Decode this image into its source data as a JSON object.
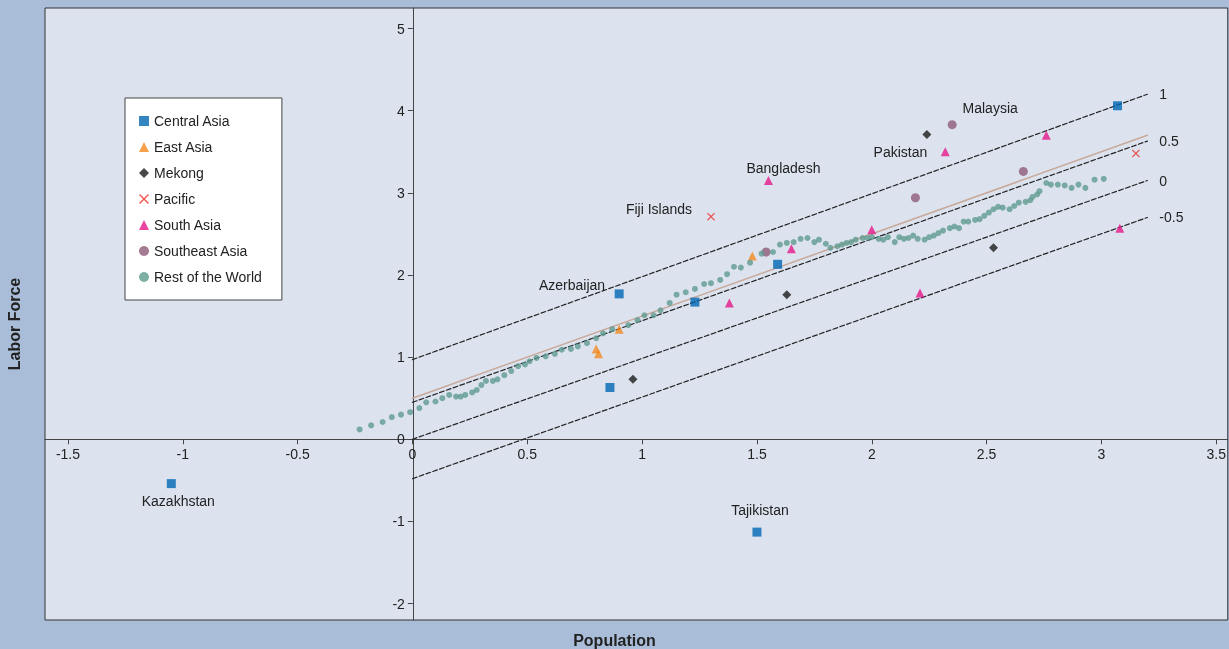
{
  "chart_data": {
    "type": "scatter",
    "xlabel": "Population",
    "ylabel": "Labor Force",
    "xlim": [
      -1.6,
      3.55
    ],
    "ylim": [
      -2.2,
      5.25
    ],
    "xticks": [
      -1.5,
      -1,
      -0.5,
      0,
      0.5,
      1,
      1.5,
      2,
      2.5,
      3,
      3.5
    ],
    "yticks": [
      -2,
      -1,
      0,
      1,
      2,
      3,
      4,
      5
    ],
    "legend": "top left",
    "series": [
      {
        "name": "Central Asia",
        "marker": "square",
        "color": "#0066b3",
        "x": [
          0.9,
          0.86,
          1.23,
          1.59,
          3.07,
          -1.05,
          1.5
        ],
        "values": [
          1.77,
          0.63,
          1.67,
          2.13,
          4.06,
          -0.54,
          -1.13
        ]
      },
      {
        "name": "East Asia",
        "marker": "triangle",
        "color": "#f28a1e",
        "x": [
          0.8,
          0.81,
          0.9,
          1.48
        ],
        "values": [
          1.1,
          1.04,
          1.34,
          2.23
        ]
      },
      {
        "name": "Mekong",
        "marker": "diamond",
        "color": "#1a1a1a",
        "x": [
          2.24,
          0.96,
          1.63,
          2.53
        ],
        "values": [
          3.71,
          0.73,
          1.76,
          2.33
        ]
      },
      {
        "name": "Pacific",
        "marker": "cross",
        "color": "#ee2a24",
        "x": [
          1.3,
          3.15
        ],
        "values": [
          2.71,
          3.48
        ]
      },
      {
        "name": "South Asia",
        "marker": "triangle",
        "color": "#e6168a",
        "x": [
          1.55,
          2.32,
          2.76,
          2.0,
          1.65,
          1.38,
          2.21,
          3.08
        ],
        "values": [
          3.15,
          3.5,
          3.7,
          2.55,
          2.32,
          1.66,
          1.78,
          2.57
        ]
      },
      {
        "name": "Southeast Asia",
        "marker": "circle",
        "color": "#8e5a78",
        "x": [
          2.35,
          2.19,
          2.66,
          1.54
        ],
        "values": [
          3.83,
          2.94,
          3.26,
          2.28
        ]
      },
      {
        "name": "Rest of the World",
        "marker": "circle",
        "color": "#5f9a8e",
        "x": [
          -0.23,
          -0.18,
          -0.13,
          -0.09,
          -0.05,
          -0.01,
          0.03,
          0.06,
          0.1,
          0.13,
          0.16,
          0.19,
          0.21,
          0.23,
          0.26,
          0.28,
          0.3,
          0.32,
          0.35,
          0.37,
          0.4,
          0.43,
          0.46,
          0.49,
          0.51,
          0.54,
          0.58,
          0.62,
          0.65,
          0.69,
          0.72,
          0.76,
          0.8,
          0.83,
          0.87,
          0.94,
          0.98,
          1.01,
          1.05,
          1.08,
          1.12,
          1.15,
          1.19,
          1.23,
          1.27,
          1.3,
          1.34,
          1.37,
          1.4,
          1.43,
          1.47,
          1.52,
          1.57,
          1.6,
          1.63,
          1.66,
          1.69,
          1.72,
          1.75,
          1.77,
          1.8,
          1.82,
          1.85,
          1.87,
          1.89,
          1.91,
          1.93,
          1.96,
          1.98,
          2.0,
          2.03,
          2.05,
          2.07,
          2.1,
          2.12,
          2.14,
          2.16,
          2.18,
          2.2,
          2.23,
          2.25,
          2.27,
          2.29,
          2.31,
          2.34,
          2.36,
          2.38,
          2.4,
          2.42,
          2.45,
          2.47,
          2.49,
          2.51,
          2.53,
          2.55,
          2.57,
          2.6,
          2.62,
          2.64,
          2.67,
          2.69,
          2.7,
          2.72,
          2.73,
          2.76,
          2.78,
          2.81,
          2.84,
          2.87,
          2.9,
          2.93,
          2.97,
          3.01
        ],
        "values": [
          0.12,
          0.17,
          0.21,
          0.27,
          0.3,
          0.33,
          0.38,
          0.45,
          0.46,
          0.5,
          0.54,
          0.52,
          0.52,
          0.54,
          0.57,
          0.6,
          0.66,
          0.71,
          0.71,
          0.73,
          0.78,
          0.83,
          0.89,
          0.91,
          0.95,
          0.99,
          1.01,
          1.04,
          1.09,
          1.1,
          1.13,
          1.17,
          1.23,
          1.29,
          1.34,
          1.39,
          1.45,
          1.51,
          1.51,
          1.57,
          1.66,
          1.76,
          1.79,
          1.83,
          1.89,
          1.9,
          1.94,
          2.01,
          2.1,
          2.09,
          2.15,
          2.26,
          2.28,
          2.37,
          2.39,
          2.4,
          2.44,
          2.45,
          2.4,
          2.43,
          2.38,
          2.33,
          2.35,
          2.37,
          2.39,
          2.4,
          2.43,
          2.45,
          2.45,
          2.46,
          2.44,
          2.43,
          2.46,
          2.4,
          2.46,
          2.44,
          2.45,
          2.48,
          2.44,
          2.43,
          2.46,
          2.48,
          2.51,
          2.54,
          2.57,
          2.59,
          2.57,
          2.65,
          2.65,
          2.67,
          2.68,
          2.72,
          2.76,
          2.8,
          2.83,
          2.82,
          2.8,
          2.84,
          2.88,
          2.89,
          2.91,
          2.95,
          2.98,
          3.02,
          3.12,
          3.1,
          3.1,
          3.09,
          3.06,
          3.1,
          3.06,
          3.16,
          3.17
        ]
      },
      {
        "type": "line",
        "color": "#c8a898",
        "line_style": "solid",
        "marker": "none",
        "x": [
          0,
          3.2
        ],
        "values": [
          0.5,
          3.7
        ]
      },
      {
        "name": "1",
        "type": "line",
        "color": "#222222",
        "line_style": "dashed",
        "marker": "none",
        "x": [
          0,
          3.2
        ],
        "values": [
          0.97,
          4.2
        ]
      },
      {
        "name": "0.5",
        "type": "line",
        "color": "#222222",
        "line_style": "dashed",
        "marker": "none",
        "x": [
          0,
          3.2
        ],
        "values": [
          0.45,
          3.63
        ]
      },
      {
        "name": "0",
        "type": "line",
        "color": "#222222",
        "line_style": "dashed",
        "marker": "none",
        "x": [
          0,
          3.2
        ],
        "values": [
          0,
          3.15
        ]
      },
      {
        "name": "-0.5",
        "type": "line",
        "color": "#222222",
        "line_style": "dashed",
        "marker": "none",
        "x": [
          0,
          3.2
        ],
        "values": [
          -0.48,
          2.7
        ]
      }
    ],
    "annotations": [
      {
        "text": "Kazakhstan",
        "x": -1.05,
        "y": -0.54
      },
      {
        "text": "Tajikistan",
        "x": 1.5,
        "y": -1.13
      },
      {
        "text": "Azerbaijan",
        "x": 0.9,
        "y": 1.77
      },
      {
        "text": "Fiji Islands",
        "x": 1.3,
        "y": 2.71
      },
      {
        "text": "Bangladesh",
        "x": 1.55,
        "y": 3.15
      },
      {
        "text": "Pakistan",
        "x": 2.32,
        "y": 3.5
      },
      {
        "text": "Malaysia",
        "x": 2.35,
        "y": 3.83
      }
    ]
  }
}
